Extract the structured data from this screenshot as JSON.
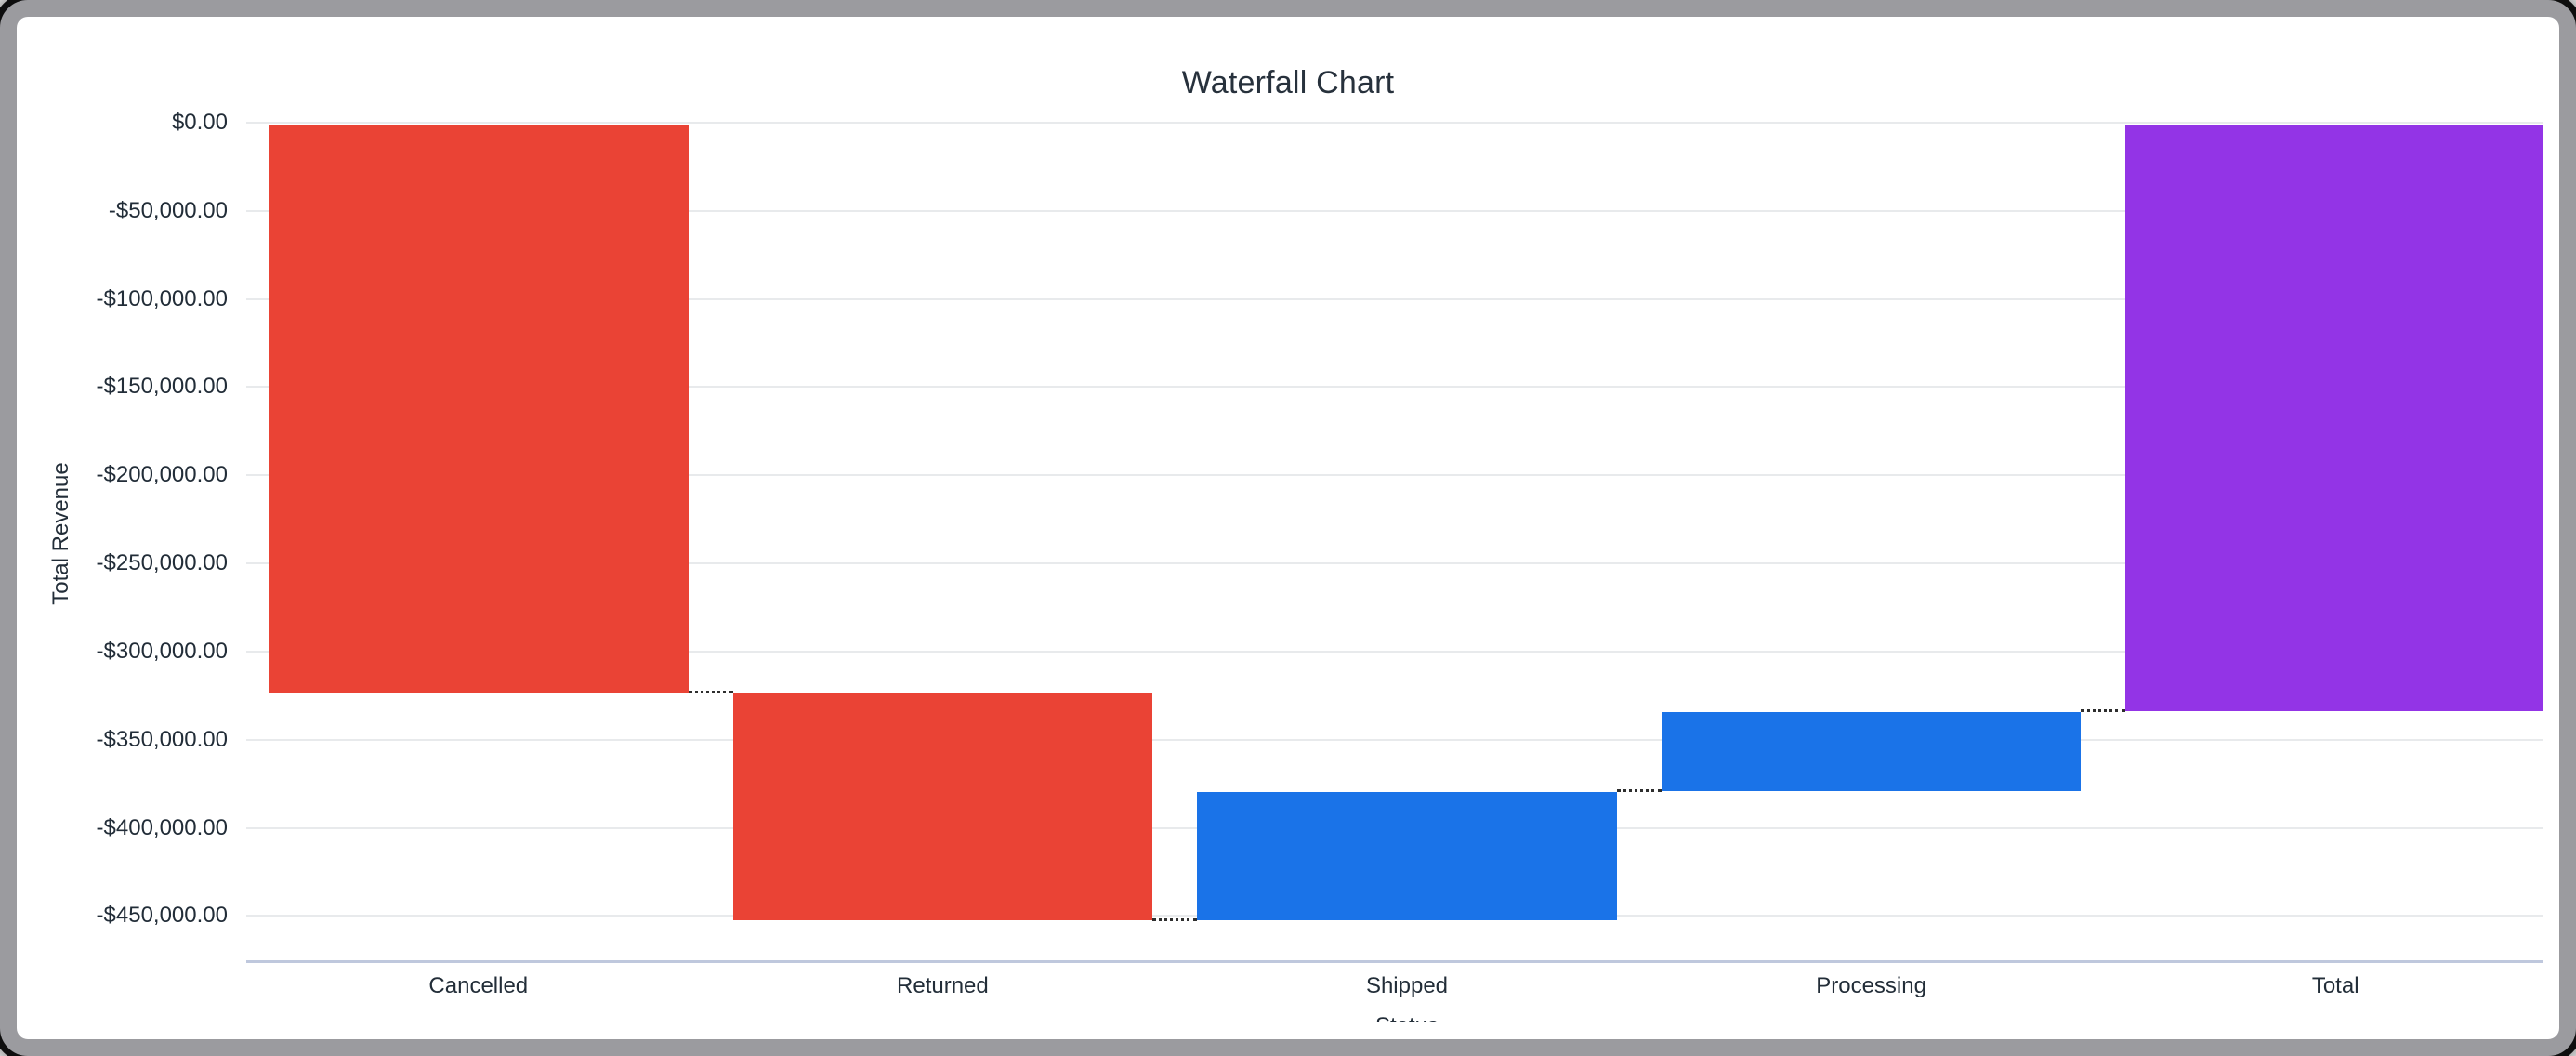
{
  "chart_data": {
    "type": "waterfall",
    "title": "Waterfall Chart",
    "xlabel": "Status",
    "ylabel": "Total Revenue",
    "categories": [
      "Cancelled",
      "Returned",
      "Shipped",
      "Processing",
      "Total"
    ],
    "series": [
      {
        "name": "Total Revenue",
        "deltas": [
          -323300,
          -129000,
          73000,
          45500,
          null
        ],
        "cumulative": [
          -323300,
          -452300,
          -379300,
          -333800,
          -333800
        ]
      }
    ],
    "bars": [
      {
        "label": "Cancelled",
        "start": 0,
        "end": -323300,
        "role": "decrease"
      },
      {
        "label": "Returned",
        "start": -323300,
        "end": -452300,
        "role": "decrease"
      },
      {
        "label": "Shipped",
        "start": -452300,
        "end": -379300,
        "role": "increase"
      },
      {
        "label": "Processing",
        "start": -379300,
        "end": -333800,
        "role": "increase"
      },
      {
        "label": "Total",
        "start": 0,
        "end": -333800,
        "role": "total"
      }
    ],
    "total_value": -333800,
    "y_axis": {
      "title": "Total Revenue",
      "ticks": [
        {
          "value": 0,
          "label": "$0.00"
        },
        {
          "value": -50000,
          "label": "-$50,000.00"
        },
        {
          "value": -100000,
          "label": "-$100,000.00"
        },
        {
          "value": -150000,
          "label": "-$150,000.00"
        },
        {
          "value": -200000,
          "label": "-$200,000.00"
        },
        {
          "value": -250000,
          "label": "-$250,000.00"
        },
        {
          "value": -300000,
          "label": "-$300,000.00"
        },
        {
          "value": -350000,
          "label": "-$350,000.00"
        },
        {
          "value": -400000,
          "label": "-$400,000.00"
        },
        {
          "value": -450000,
          "label": "-$450,000.00"
        }
      ]
    },
    "ylim": [
      0,
      -475100
    ],
    "grid": true,
    "legend": "none",
    "connector_style": "dotted",
    "colors": {
      "decrease": "#ea4335",
      "increase": "#1a73e8",
      "total": "#9334e6",
      "gridline": "#e8eaec",
      "axis_line": "#bfc8dd",
      "connector": "#2e2e2e",
      "text": "#222d38"
    }
  }
}
